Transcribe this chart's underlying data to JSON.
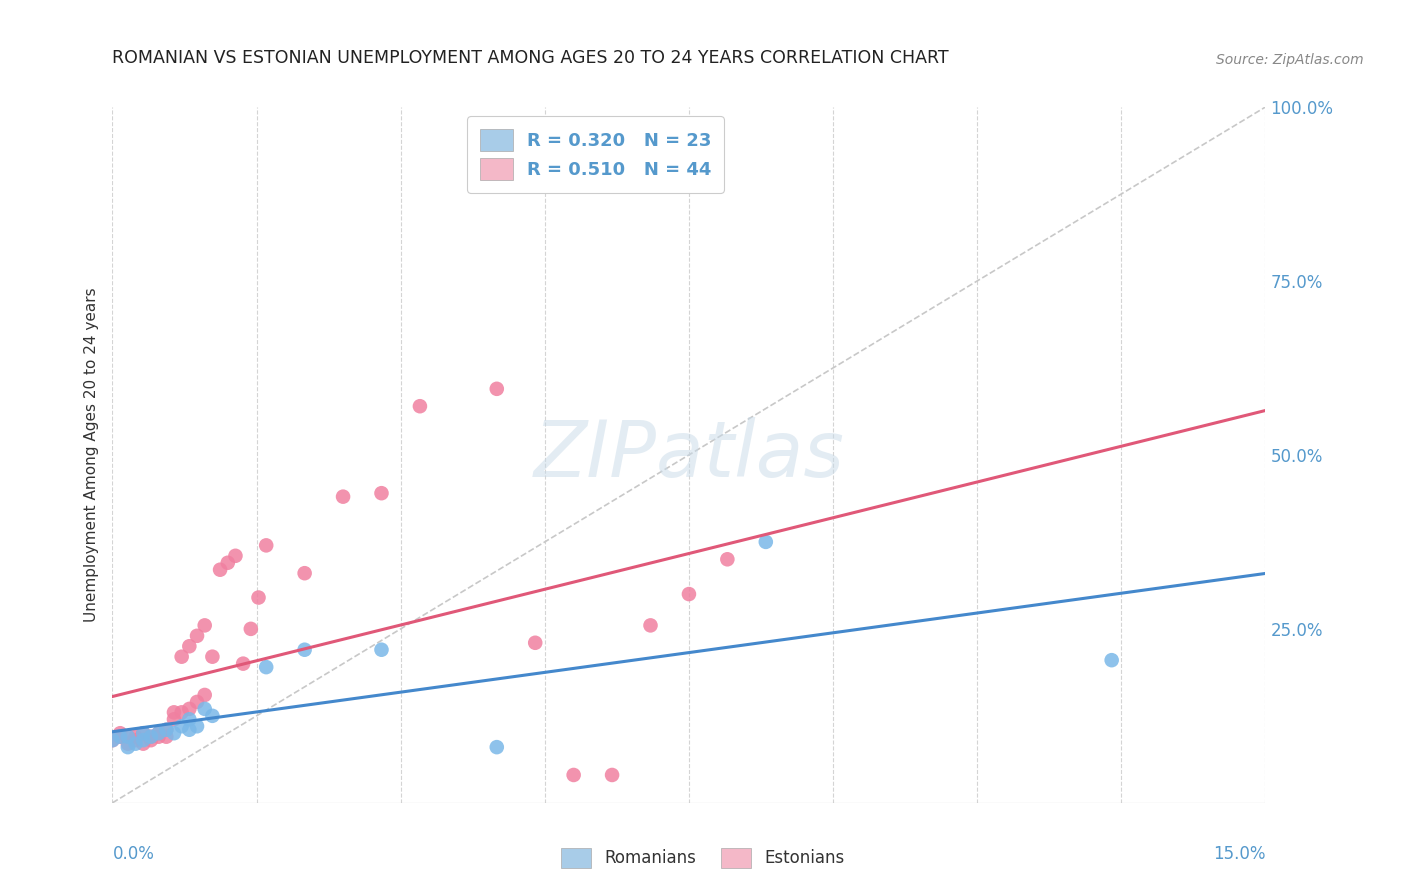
{
  "title": "ROMANIAN VS ESTONIAN UNEMPLOYMENT AMONG AGES 20 TO 24 YEARS CORRELATION CHART",
  "source": "Source: ZipAtlas.com",
  "ylabel": "Unemployment Among Ages 20 to 24 years",
  "romanians_color": "#7ab8e8",
  "estonians_color": "#f080a0",
  "romanians_patch_color": "#a8cce8",
  "estonians_patch_color": "#f4b8c8",
  "trend_romanian_color": "#4488cc",
  "trend_estonian_color": "#e05878",
  "diagonal_color": "#c0c0c0",
  "background_color": "#ffffff",
  "watermark": "ZIPatlas",
  "r_romanian": "0.320",
  "n_romanian": "23",
  "r_estonian": "0.510",
  "n_estonian": "44",
  "xmin": 0.0,
  "xmax": 0.15,
  "ymin": 0.0,
  "ymax": 1.0,
  "rom_x": [
    0.0,
    0.001,
    0.002,
    0.002,
    0.003,
    0.004,
    0.004,
    0.005,
    0.006,
    0.007,
    0.008,
    0.009,
    0.01,
    0.01,
    0.011,
    0.012,
    0.013,
    0.02,
    0.025,
    0.035,
    0.05,
    0.085,
    0.13
  ],
  "rom_y": [
    0.09,
    0.095,
    0.08,
    0.095,
    0.085,
    0.09,
    0.1,
    0.095,
    0.1,
    0.105,
    0.1,
    0.11,
    0.105,
    0.12,
    0.11,
    0.135,
    0.125,
    0.195,
    0.22,
    0.22,
    0.08,
    0.375,
    0.205
  ],
  "est_x": [
    0.0,
    0.001,
    0.001,
    0.002,
    0.002,
    0.003,
    0.003,
    0.004,
    0.004,
    0.005,
    0.005,
    0.006,
    0.006,
    0.007,
    0.007,
    0.008,
    0.008,
    0.009,
    0.009,
    0.01,
    0.01,
    0.011,
    0.011,
    0.012,
    0.012,
    0.013,
    0.014,
    0.015,
    0.016,
    0.017,
    0.018,
    0.019,
    0.02,
    0.025,
    0.03,
    0.035,
    0.04,
    0.05,
    0.055,
    0.06,
    0.065,
    0.07,
    0.075,
    0.08
  ],
  "est_y": [
    0.09,
    0.095,
    0.1,
    0.085,
    0.095,
    0.09,
    0.095,
    0.085,
    0.1,
    0.09,
    0.095,
    0.095,
    0.1,
    0.095,
    0.105,
    0.12,
    0.13,
    0.13,
    0.21,
    0.135,
    0.225,
    0.145,
    0.24,
    0.155,
    0.255,
    0.21,
    0.335,
    0.345,
    0.355,
    0.2,
    0.25,
    0.295,
    0.37,
    0.33,
    0.44,
    0.445,
    0.57,
    0.595,
    0.23,
    0.04,
    0.04,
    0.255,
    0.3,
    0.35
  ]
}
